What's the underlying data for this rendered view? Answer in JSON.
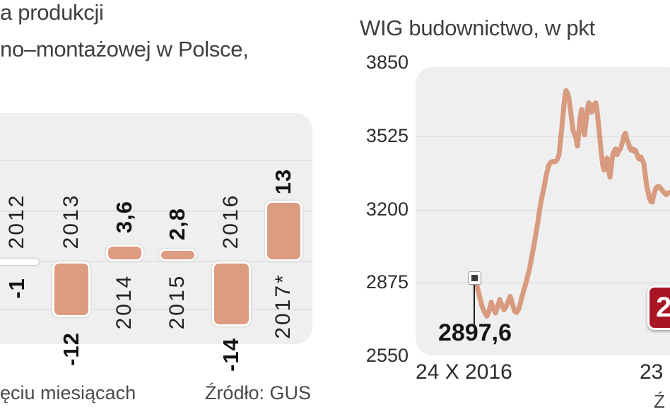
{
  "colors": {
    "panel_bg": "#efefef",
    "gridline": "#e3e3e3",
    "bar_fill": "#dc9c80",
    "bar_border": "#fcfcfc",
    "line": "#d89b80",
    "badge_bg": "#a91523",
    "marker": "#3a3a3a"
  },
  "chart_data": [
    {
      "type": "bar",
      "title_visible_lines": [
        "a produkcji",
        "no–montażowej w Polsce,"
      ],
      "categories": [
        "2012",
        "2013",
        "2014",
        "2015",
        "2016",
        "2017*"
      ],
      "values": [
        -1,
        -12,
        3.6,
        2.8,
        -14,
        13
      ],
      "value_labels": [
        "-1",
        "-12",
        "3,6",
        "2,8",
        "-14",
        "13"
      ],
      "gridline_values": [
        20,
        10,
        0,
        -10
      ],
      "ylim": [
        -18,
        31
      ],
      "footnote_visible": "ęciu miesiącach",
      "source": "Źródło: GUS"
    },
    {
      "type": "line",
      "title": "WIG budownictwo, w pkt",
      "y_ticks": [
        3850,
        3525,
        3200,
        2875,
        2550
      ],
      "ylim": [
        2550,
        3850
      ],
      "grid_ticks_inside": [
        3525,
        3200,
        2875
      ],
      "x_label_start": "24 X 2016",
      "x_label_end_visible": "23",
      "start_annotation": {
        "label": "2897,6",
        "value": 2897.6
      },
      "badge_visible": "2",
      "source_visible": "Ź",
      "points": [
        [
          668,
          2902
        ],
        [
          671,
          2897.6
        ],
        [
          674,
          2868
        ],
        [
          678,
          2818
        ],
        [
          682,
          2768
        ],
        [
          686,
          2738
        ],
        [
          689,
          2724
        ],
        [
          692,
          2746
        ],
        [
          695,
          2786
        ],
        [
          698,
          2760
        ],
        [
          701,
          2738
        ],
        [
          704,
          2764
        ],
        [
          707,
          2798
        ],
        [
          710,
          2774
        ],
        [
          713,
          2752
        ],
        [
          716,
          2766
        ],
        [
          719,
          2790
        ],
        [
          722,
          2812
        ],
        [
          725,
          2778
        ],
        [
          728,
          2746
        ],
        [
          731,
          2740
        ],
        [
          734,
          2756
        ],
        [
          737,
          2790
        ],
        [
          740,
          2826
        ],
        [
          743,
          2858
        ],
        [
          746,
          2894
        ],
        [
          749,
          2930
        ],
        [
          752,
          2980
        ],
        [
          755,
          3030
        ],
        [
          758,
          3085
        ],
        [
          761,
          3140
        ],
        [
          764,
          3205
        ],
        [
          767,
          3255
        ],
        [
          770,
          3300
        ],
        [
          773,
          3350
        ],
        [
          776,
          3390
        ],
        [
          779,
          3405
        ],
        [
          782,
          3410
        ],
        [
          785,
          3408
        ],
        [
          788,
          3416
        ],
        [
          791,
          3440
        ],
        [
          793,
          3500
        ],
        [
          795,
          3560
        ],
        [
          797,
          3630
        ],
        [
          799,
          3692
        ],
        [
          801,
          3724
        ],
        [
          803,
          3712
        ],
        [
          805,
          3690
        ],
        [
          807,
          3642
        ],
        [
          809,
          3590
        ],
        [
          811,
          3545
        ],
        [
          813,
          3532
        ],
        [
          815,
          3512
        ],
        [
          817,
          3478
        ],
        [
          819,
          3540
        ],
        [
          821,
          3610
        ],
        [
          823,
          3640
        ],
        [
          825,
          3560
        ],
        [
          827,
          3528
        ],
        [
          829,
          3580
        ],
        [
          831,
          3640
        ],
        [
          833,
          3670
        ],
        [
          835,
          3660
        ],
        [
          837,
          3628
        ],
        [
          839,
          3642
        ],
        [
          841,
          3663
        ],
        [
          843,
          3670
        ],
        [
          845,
          3630
        ],
        [
          847,
          3570
        ],
        [
          849,
          3505
        ],
        [
          851,
          3440
        ],
        [
          853,
          3390
        ],
        [
          855,
          3372
        ],
        [
          857,
          3415
        ],
        [
          859,
          3425
        ],
        [
          861,
          3380
        ],
        [
          863,
          3340
        ],
        [
          865,
          3390
        ],
        [
          867,
          3440
        ],
        [
          869,
          3455
        ],
        [
          871,
          3465
        ],
        [
          873,
          3440
        ],
        [
          875,
          3455
        ],
        [
          877,
          3462
        ],
        [
          879,
          3476
        ],
        [
          881,
          3500
        ],
        [
          883,
          3525
        ],
        [
          885,
          3535
        ],
        [
          887,
          3505
        ],
        [
          889,
          3494
        ],
        [
          891,
          3470
        ],
        [
          893,
          3460
        ],
        [
          895,
          3466
        ],
        [
          897,
          3455
        ],
        [
          899,
          3460
        ],
        [
          901,
          3445
        ],
        [
          903,
          3425
        ],
        [
          905,
          3420
        ],
        [
          907,
          3430
        ],
        [
          909,
          3415
        ],
        [
          911,
          3400
        ],
        [
          913,
          3350
        ],
        [
          915,
          3300
        ],
        [
          917,
          3275
        ],
        [
          919,
          3245
        ],
        [
          921,
          3232
        ],
        [
          923,
          3230
        ],
        [
          925,
          3262
        ],
        [
          927,
          3282
        ],
        [
          929,
          3295
        ],
        [
          931,
          3300
        ],
        [
          933,
          3298
        ],
        [
          935,
          3290
        ],
        [
          937,
          3282
        ],
        [
          939,
          3274
        ],
        [
          941,
          3268
        ],
        [
          943,
          3262
        ],
        [
          945,
          3270
        ],
        [
          948,
          3272
        ]
      ]
    }
  ]
}
